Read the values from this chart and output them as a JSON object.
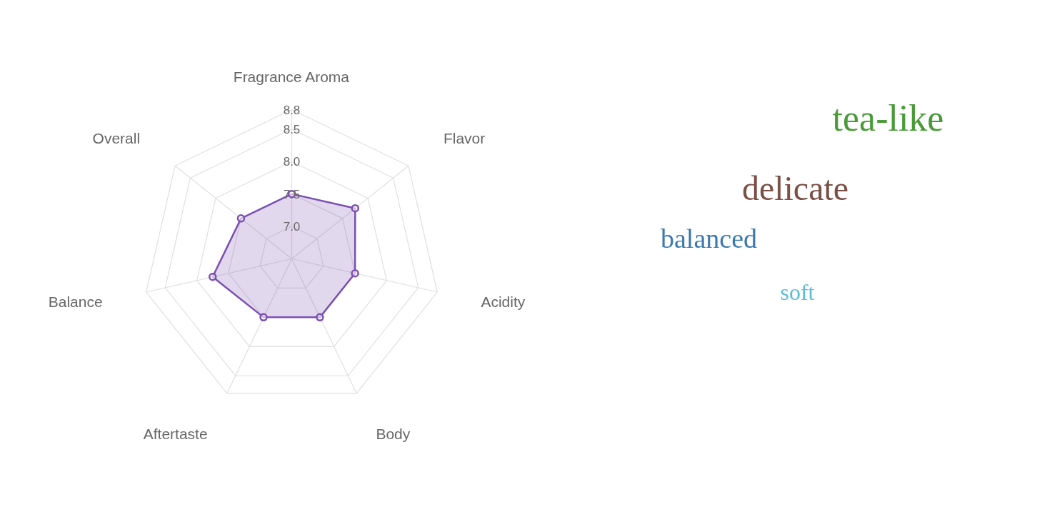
{
  "chart_data": [
    {
      "type": "radar",
      "categories": [
        "Fragrance Aroma",
        "Flavor",
        "Acidity",
        "Body",
        "Aftertaste",
        "Balance",
        "Overall"
      ],
      "series": [
        {
          "color": "#7b4fb0",
          "values": [
            7.5,
            7.75,
            7.5,
            7.5,
            7.5,
            7.75,
            7.5
          ]
        }
      ],
      "ylim": [
        6.5,
        8.8
      ],
      "yticks": [
        {
          "value": 7,
          "label": "7.0"
        },
        7.5,
        {
          "value": 8,
          "label": "8.0"
        },
        8.5,
        8.8
      ],
      "grid": true,
      "marker": "circle",
      "line_style": "solid"
    },
    {
      "type": "other",
      "series": [
        {
          "name": "tea-like",
          "color": "#4a9a3a"
        },
        {
          "name": "delicate",
          "color": "#7b5046"
        },
        {
          "name": "balanced",
          "color": "#3a78b0"
        },
        {
          "name": "soft",
          "color": "#5bbcd6"
        }
      ]
    }
  ]
}
